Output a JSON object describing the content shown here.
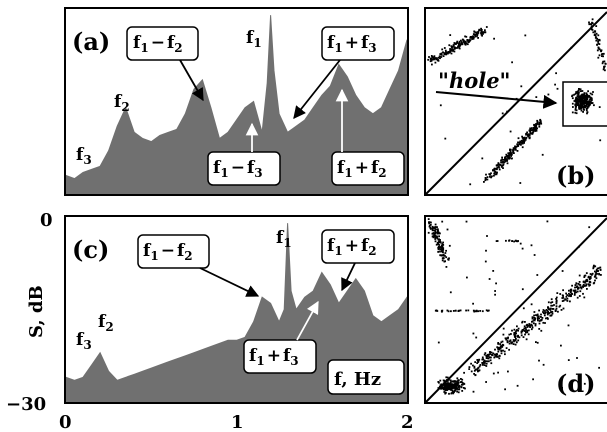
{
  "chart_data": [
    {
      "panel": "(a)",
      "type": "area",
      "xlim": [
        0,
        2
      ],
      "ylim": [
        -30,
        0
      ],
      "fill_color": "#707070",
      "x": [
        0.0,
        0.05,
        0.1,
        0.15,
        0.2,
        0.25,
        0.3,
        0.35,
        0.4,
        0.45,
        0.5,
        0.55,
        0.6,
        0.65,
        0.7,
        0.75,
        0.8,
        0.85,
        0.9,
        0.95,
        1.0,
        1.05,
        1.1,
        1.15,
        1.18,
        1.2,
        1.22,
        1.25,
        1.3,
        1.35,
        1.4,
        1.45,
        1.5,
        1.55,
        1.6,
        1.65,
        1.7,
        1.75,
        1.8,
        1.85,
        1.9,
        1.95,
        2.0
      ],
      "y": [
        -27,
        -27.5,
        -26.5,
        -26,
        -25.5,
        -23,
        -19,
        -16,
        -20,
        -21,
        -21.5,
        -20.5,
        -20,
        -19.5,
        -17,
        -13,
        -11.5,
        -16,
        -21,
        -20,
        -18,
        -16,
        -15,
        -20,
        -12,
        -1,
        -10,
        -17,
        -20,
        -19,
        -18,
        -16,
        -14,
        -12.5,
        -9,
        -11,
        -14,
        -16,
        -17,
        -16,
        -13,
        -10,
        -5
      ],
      "annotations": [
        {
          "text": "f1",
          "x": 1.2
        },
        {
          "text": "f2",
          "x": 0.35
        },
        {
          "text": "f3",
          "x": 0.1
        },
        {
          "text": "f1−f2",
          "x": 0.82
        },
        {
          "text": "f1+f3",
          "x": 1.32
        },
        {
          "text": "f1−f3",
          "x": 1.1
        },
        {
          "text": "f1+f2",
          "x": 1.6
        }
      ]
    },
    {
      "panel": "(b)",
      "type": "scatter",
      "annotations": [
        {
          "text": "\"hole\""
        }
      ]
    },
    {
      "panel": "(c)",
      "type": "area",
      "xlim": [
        0,
        2
      ],
      "ylim": [
        -30,
        0
      ],
      "fill_color": "#707070",
      "xticks": [
        "0",
        "1",
        "2"
      ],
      "yticks": [
        "0",
        "−30"
      ],
      "ylabel": "S, dB",
      "xlabel": "f, Hz",
      "x": [
        0.0,
        0.05,
        0.1,
        0.15,
        0.2,
        0.25,
        0.3,
        0.35,
        0.4,
        0.45,
        0.5,
        0.55,
        0.6,
        0.65,
        0.7,
        0.75,
        0.8,
        0.85,
        0.9,
        0.95,
        1.0,
        1.05,
        1.1,
        1.15,
        1.2,
        1.25,
        1.28,
        1.3,
        1.32,
        1.35,
        1.4,
        1.45,
        1.5,
        1.55,
        1.6,
        1.65,
        1.7,
        1.75,
        1.8,
        1.85,
        1.9,
        1.95,
        2.0
      ],
      "y": [
        -26,
        -26.5,
        -26,
        -24,
        -22,
        -25,
        -26.5,
        -26,
        -25.5,
        -25,
        -24.5,
        -24,
        -23.5,
        -23,
        -22.5,
        -22,
        -21.5,
        -21,
        -20.5,
        -20,
        -20,
        -19.5,
        -17,
        -13,
        -14,
        -17,
        -15,
        -1,
        -12,
        -15,
        -13,
        -12,
        -9,
        -11,
        -14,
        -12,
        -10,
        -12,
        -16,
        -17,
        -16,
        -15,
        -13
      ],
      "annotations": [
        {
          "text": "f1",
          "x": 1.3
        },
        {
          "text": "f2",
          "x": 0.22
        },
        {
          "text": "f3",
          "x": 0.12
        },
        {
          "text": "f1−f2",
          "x": 1.15
        },
        {
          "text": "f1+f2",
          "x": 1.6
        },
        {
          "text": "f1+f3",
          "x": 1.45
        }
      ]
    },
    {
      "panel": "(d)",
      "type": "scatter"
    }
  ],
  "labels": {
    "a": "(a)",
    "b": "(b)",
    "c": "(c)",
    "d": "(d)",
    "f1": "f",
    "f1_sub": "1",
    "f2": "f",
    "f2_sub": "2",
    "f3": "f",
    "f3_sub": "3",
    "combo_minus": "−",
    "combo_plus": "+",
    "hole": "\"hole\"",
    "ylabel": "S, dB",
    "xlabel": "f, Hz",
    "ytick_top": "0",
    "ytick_bottom": "−30",
    "xtick_0": "0",
    "xtick_1": "1",
    "xtick_2": "2"
  }
}
